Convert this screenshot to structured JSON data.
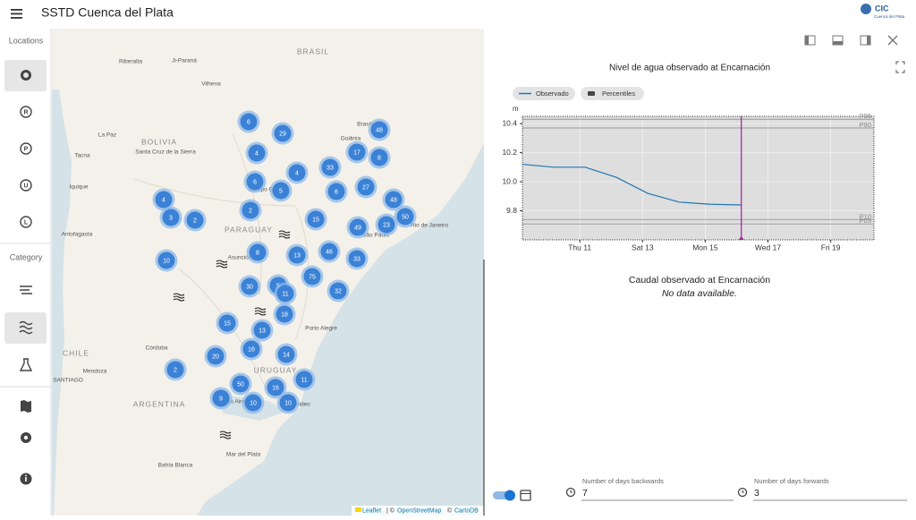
{
  "header": {
    "title": "SSTD Cuenca del Plata",
    "logo": "CIC",
    "logo_subtitle": "Cuenca del Plata"
  },
  "sidebar": {
    "locations_label": "Locations",
    "location_icons": [
      "R",
      "P",
      "U",
      "L"
    ],
    "category_label": "Category"
  },
  "map": {
    "places": [
      "BRASIL",
      "BOLIVIA",
      "PARAGUAY",
      "ARGENTINA",
      "URUGUAY",
      "CHILE",
      "Santa Cruz de la Sierra",
      "Riberalta",
      "Ji-Paraná",
      "Vilhena",
      "La Paz",
      "Tacna",
      "Iquique",
      "Antofagasta",
      "Asunción",
      "Goiânia",
      "Brasília",
      "Campo Grande",
      "São Paulo",
      "Rio de Janeiro",
      "Porto Alegre",
      "Córdoba",
      "Mendoza",
      "SANTIAGO",
      "Buenos Aires",
      "Montevideo",
      "Mar del Plata",
      "Bahía Blanca"
    ],
    "clusters": [
      6,
      29,
      48,
      4,
      17,
      8,
      4,
      33,
      6,
      5,
      4,
      6,
      27,
      48,
      3,
      2,
      2,
      15,
      49,
      23,
      50,
      10,
      8,
      13,
      46,
      33,
      75,
      30,
      5,
      11,
      32,
      18,
      15,
      13,
      16,
      20,
      14,
      2,
      11,
      50,
      16,
      9,
      10,
      10
    ],
    "attribution": {
      "leaflet": "Leaflet",
      "separator": "| ©",
      "osm": "OpenStreetMap",
      "copy": "©",
      "carto": "CartoDB"
    }
  },
  "chart_data": {
    "type": "line",
    "title": "Nivel de agua observado at Encarnación",
    "y_label": "m",
    "x": [
      9.17,
      10.17,
      11.17,
      12.17,
      13.17,
      14.17,
      15.17,
      16.17
    ],
    "series": [
      {
        "name": "Observado",
        "color": "#1f77b4",
        "values": [
          10.12,
          10.1,
          10.1,
          10.03,
          9.92,
          9.86,
          9.845,
          9.84
        ]
      }
    ],
    "percentiles_legend": "Percentiles",
    "percentiles": [
      {
        "label": "P95",
        "value": 10.43
      },
      {
        "label": "P90",
        "value": 10.37
      },
      {
        "label": "P10",
        "value": 9.74
      },
      {
        "label": "P05",
        "value": 9.71
      }
    ],
    "now_x": 16.15,
    "xlim": [
      9.17,
      20.38
    ],
    "ylim": [
      9.6,
      10.45
    ],
    "xticks": [
      {
        "value": 11,
        "label": "Thu 11"
      },
      {
        "value": 13,
        "label": "Sat 13"
      },
      {
        "value": 15,
        "label": "Mon 15"
      },
      {
        "value": 17,
        "label": "Wed 17"
      },
      {
        "value": 19,
        "label": "Fri 19"
      }
    ],
    "yticks": [
      9.8,
      {
        "value": 10,
        "label": "10.0"
      },
      10.2,
      10.4
    ],
    "grid": true
  },
  "flow_panel": {
    "title": "Caudal observado at Encarnación",
    "message": "No data available."
  },
  "controls": {
    "backwards_label": "Number of days backwards",
    "backwards": 7,
    "forwards_label": "Number of days forwards",
    "forwards": 3
  }
}
